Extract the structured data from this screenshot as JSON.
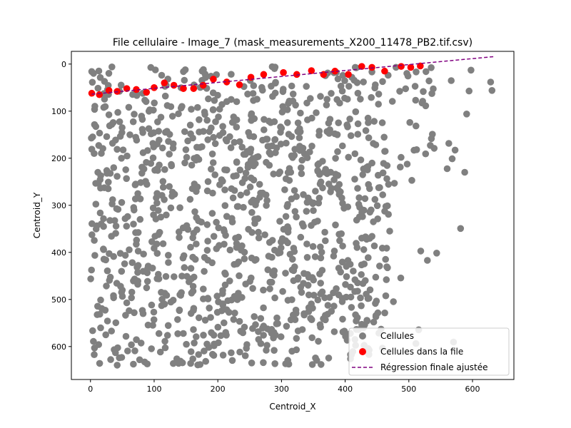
{
  "chart_data": {
    "type": "scatter",
    "title": "File cellulaire - Image_7 (mask_measurements_X200_11478_PB2.tif.csv)",
    "xlabel": "Centroid_X",
    "ylabel": "Centroid_Y",
    "xlim": [
      -30,
      665
    ],
    "ylim": [
      670,
      -27
    ],
    "y_inverted": true,
    "xticks": [
      0,
      100,
      200,
      300,
      400,
      500,
      600
    ],
    "yticks": [
      0,
      100,
      200,
      300,
      400,
      500,
      600
    ],
    "legend_position": "lower-right",
    "series": [
      {
        "name": "Cellules",
        "color": "#808080",
        "generated": true,
        "count": 1150,
        "x_range": [
          0,
          635
        ],
        "y_range": [
          5,
          640
        ]
      },
      {
        "name": "Cellules dans la file",
        "color": "#ff0000",
        "points": [
          [
            2,
            62
          ],
          [
            14,
            65
          ],
          [
            29,
            56
          ],
          [
            42,
            58
          ],
          [
            57,
            52
          ],
          [
            72,
            54
          ],
          [
            88,
            60
          ],
          [
            100,
            50
          ],
          [
            116,
            40
          ],
          [
            131,
            45
          ],
          [
            146,
            52
          ],
          [
            162,
            52
          ],
          [
            177,
            45
          ],
          [
            193,
            32
          ],
          [
            214,
            38
          ],
          [
            234,
            44
          ],
          [
            252,
            28
          ],
          [
            272,
            22
          ],
          [
            303,
            18
          ],
          [
            324,
            22
          ],
          [
            347,
            14
          ],
          [
            366,
            22
          ],
          [
            384,
            15
          ],
          [
            405,
            22
          ],
          [
            426,
            5
          ],
          [
            442,
            7
          ],
          [
            462,
            15
          ],
          [
            488,
            5
          ],
          [
            503,
            7
          ],
          [
            518,
            4
          ]
        ]
      },
      {
        "name": "Régression finale ajustée",
        "color": "#800080",
        "line_style": "dashed",
        "points": [
          [
            2,
            64
          ],
          [
            635,
            -16
          ]
        ]
      }
    ]
  }
}
